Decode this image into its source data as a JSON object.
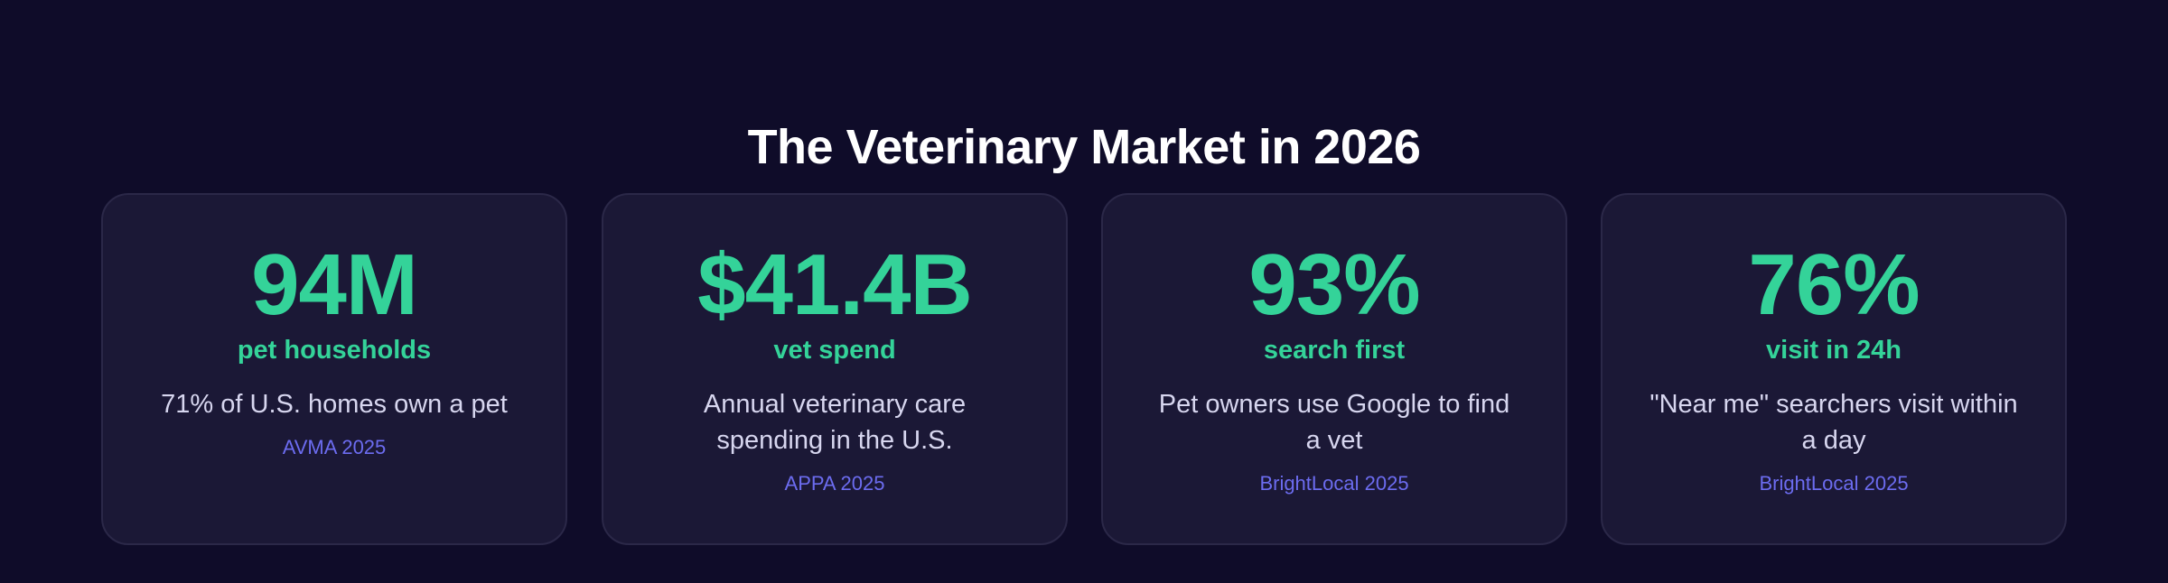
{
  "section": {
    "title": "The Veterinary Market in 2026"
  },
  "stats": [
    {
      "value": "94M",
      "label": "pet households",
      "description": "71% of U.S. homes own a pet",
      "source": "AVMA 2025"
    },
    {
      "value": "$41.4B",
      "label": "vet spend",
      "description": "Annual veterinary care spending in the U.S.",
      "source": "APPA 2025"
    },
    {
      "value": "93%",
      "label": "search first",
      "description": "Pet owners use Google to find a vet",
      "source": "BrightLocal 2025"
    },
    {
      "value": "76%",
      "label": "visit in 24h",
      "description": "\"Near me\" searchers visit within a day",
      "source": "BrightLocal 2025"
    }
  ],
  "colors": {
    "background": "#0f0c29",
    "card_background": "#1b1836",
    "card_border": "#2b2848",
    "accent_green": "#34d399",
    "source_blue": "#6c6cf0",
    "description_text": "#d7d6ef"
  }
}
